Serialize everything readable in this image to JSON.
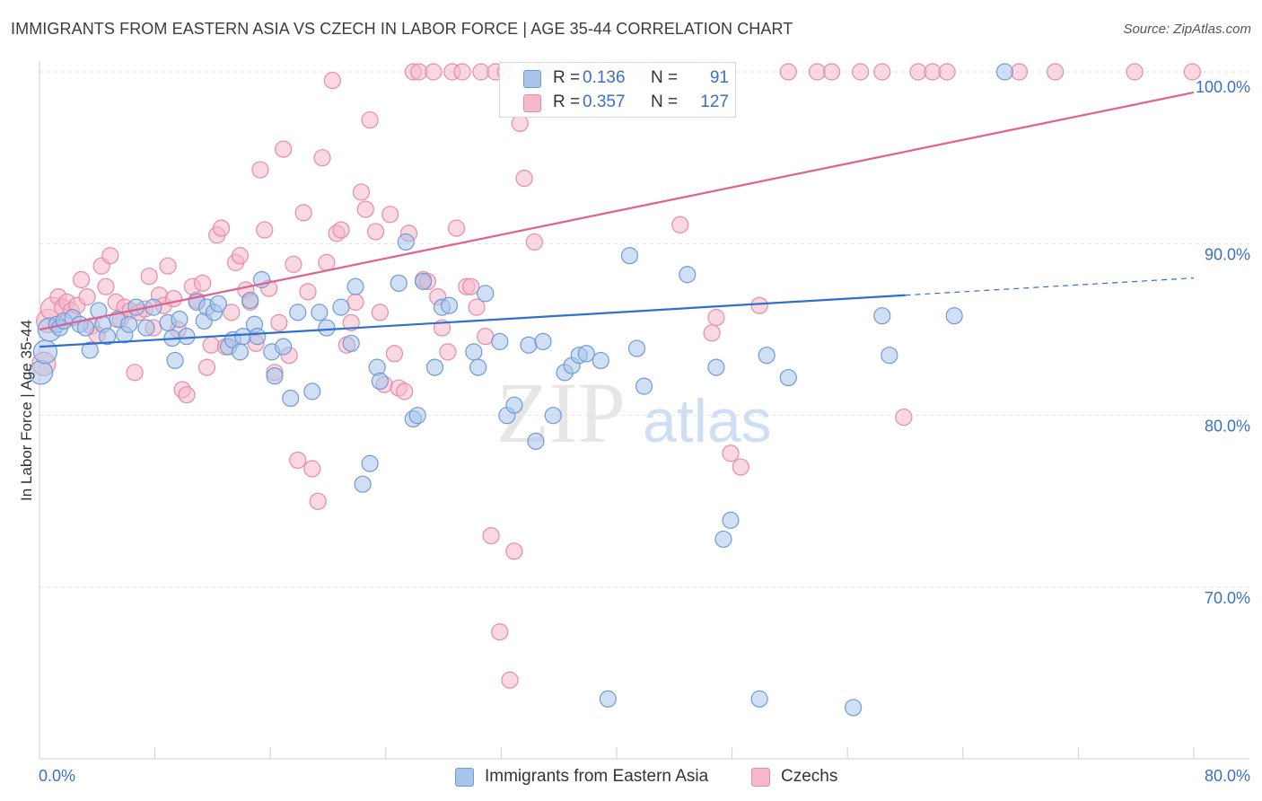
{
  "header": {
    "title": "IMMIGRANTS FROM EASTERN ASIA VS CZECH IN LABOR FORCE | AGE 35-44 CORRELATION CHART",
    "source": "Source: ZipAtlas.com"
  },
  "watermark": {
    "zip": "ZIP",
    "atlas": "atlas"
  },
  "legend": {
    "rows": [
      {
        "r_label": "R =",
        "r_value": "0.136",
        "n_label": "N =",
        "n_value": "91"
      },
      {
        "r_label": "R =",
        "r_value": "0.357",
        "n_label": "N =",
        "n_value": "127"
      }
    ]
  },
  "bottom_legend": {
    "items": [
      {
        "label": "Immigrants from Eastern Asia"
      },
      {
        "label": "Czechs"
      }
    ]
  },
  "colors": {
    "blue_fill": "#a9c4ea",
    "blue_stroke": "#6f9bd8",
    "blue_line": "#2f6fce",
    "pink_fill": "#f5b8cb",
    "pink_stroke": "#e88aa8",
    "pink_line": "#e0608e",
    "axis_label": "#3b6fc8",
    "grid": "#e2e2e2"
  },
  "chart_data": {
    "type": "scatter",
    "title": "IMMIGRANTS FROM EASTERN ASIA VS CZECH IN LABOR FORCE | AGE 35-44 CORRELATION CHART",
    "xlabel": "",
    "ylabel": "In Labor Force | Age 35-44",
    "xlim": [
      0,
      80
    ],
    "ylim": [
      60,
      100
    ],
    "x_tick_labels": [
      "0.0%",
      "80.0%"
    ],
    "y_ticks": [
      70,
      80,
      90,
      100
    ],
    "y_tick_labels": [
      "70.0%",
      "80.0%",
      "90.0%",
      "100.0%"
    ],
    "grid": true,
    "legend_position": "top-center",
    "series": [
      {
        "name": "Immigrants from Eastern Asia",
        "color": "blue",
        "trend": {
          "x0": 0,
          "y0": 84.0,
          "x1": 60,
          "y1": 87.0,
          "dashed_to": 80,
          "dashed_y": 88.0
        },
        "points": [
          [
            0.1,
            82.5
          ],
          [
            0.4,
            83.7
          ],
          [
            0.7,
            85.0
          ],
          [
            1.2,
            85.3
          ],
          [
            1.4,
            85.1
          ],
          [
            1.7,
            85.5
          ],
          [
            2.3,
            85.7
          ],
          [
            2.8,
            85.3
          ],
          [
            3.2,
            85.1
          ],
          [
            3.5,
            83.8
          ],
          [
            4.1,
            86.1
          ],
          [
            4.4,
            85.3
          ],
          [
            4.7,
            84.6
          ],
          [
            5.4,
            85.6
          ],
          [
            5.9,
            84.7
          ],
          [
            6.2,
            85.3
          ],
          [
            6.7,
            86.3
          ],
          [
            7.4,
            85.1
          ],
          [
            7.9,
            86.3
          ],
          [
            8.9,
            85.4
          ],
          [
            9.2,
            84.5
          ],
          [
            9.4,
            83.2
          ],
          [
            9.7,
            85.6
          ],
          [
            10.2,
            84.6
          ],
          [
            10.9,
            86.6
          ],
          [
            11.4,
            85.5
          ],
          [
            11.6,
            86.3
          ],
          [
            12.1,
            86.0
          ],
          [
            12.4,
            86.5
          ],
          [
            13.1,
            84.0
          ],
          [
            13.4,
            84.4
          ],
          [
            13.9,
            83.7
          ],
          [
            14.1,
            84.6
          ],
          [
            14.6,
            86.7
          ],
          [
            14.9,
            85.3
          ],
          [
            15.1,
            84.6
          ],
          [
            15.4,
            87.9
          ],
          [
            16.1,
            83.7
          ],
          [
            16.3,
            82.3
          ],
          [
            16.9,
            84.0
          ],
          [
            17.4,
            81.0
          ],
          [
            17.9,
            86.0
          ],
          [
            18.9,
            81.4
          ],
          [
            19.4,
            86.0
          ],
          [
            19.9,
            85.1
          ],
          [
            20.9,
            86.3
          ],
          [
            21.6,
            84.2
          ],
          [
            21.9,
            87.5
          ],
          [
            22.4,
            76.0
          ],
          [
            22.9,
            77.2
          ],
          [
            23.4,
            82.8
          ],
          [
            23.6,
            82.0
          ],
          [
            24.9,
            87.7
          ],
          [
            25.4,
            90.1
          ],
          [
            25.9,
            79.8
          ],
          [
            26.2,
            80.0
          ],
          [
            26.6,
            87.8
          ],
          [
            27.4,
            82.8
          ],
          [
            27.9,
            86.3
          ],
          [
            28.4,
            86.4
          ],
          [
            30.1,
            83.7
          ],
          [
            30.4,
            82.8
          ],
          [
            30.9,
            87.1
          ],
          [
            31.9,
            84.3
          ],
          [
            32.4,
            80.0
          ],
          [
            32.9,
            80.6
          ],
          [
            33.9,
            84.1
          ],
          [
            34.4,
            78.5
          ],
          [
            34.9,
            84.3
          ],
          [
            35.6,
            80.0
          ],
          [
            36.4,
            82.5
          ],
          [
            36.9,
            82.9
          ],
          [
            37.4,
            83.5
          ],
          [
            37.9,
            83.6
          ],
          [
            38.9,
            83.2
          ],
          [
            39.4,
            63.5
          ],
          [
            40.9,
            89.3
          ],
          [
            41.4,
            83.9
          ],
          [
            41.9,
            81.7
          ],
          [
            44.9,
            88.2
          ],
          [
            46.9,
            82.8
          ],
          [
            47.4,
            72.8
          ],
          [
            47.9,
            73.9
          ],
          [
            49.9,
            63.5
          ],
          [
            50.4,
            83.5
          ],
          [
            51.9,
            82.2
          ],
          [
            56.4,
            63.0
          ],
          [
            58.4,
            85.8
          ],
          [
            58.9,
            83.5
          ],
          [
            63.4,
            85.8
          ],
          [
            66.9,
            100.0
          ]
        ]
      },
      {
        "name": "Czechs",
        "color": "pink",
        "trend": {
          "x0": 0,
          "y0": 85.0,
          "x1": 80,
          "y1": 98.8
        },
        "points": [
          [
            0.3,
            83.0
          ],
          [
            0.6,
            85.5
          ],
          [
            0.9,
            86.2
          ],
          [
            1.3,
            86.9
          ],
          [
            1.6,
            86.3
          ],
          [
            1.9,
            86.6
          ],
          [
            2.2,
            86.1
          ],
          [
            2.6,
            86.4
          ],
          [
            2.9,
            87.9
          ],
          [
            3.3,
            86.9
          ],
          [
            3.6,
            85.2
          ],
          [
            4.0,
            84.7
          ],
          [
            4.3,
            88.7
          ],
          [
            4.6,
            87.5
          ],
          [
            4.9,
            89.3
          ],
          [
            5.3,
            86.6
          ],
          [
            5.6,
            85.6
          ],
          [
            5.9,
            86.3
          ],
          [
            6.3,
            86.1
          ],
          [
            6.6,
            82.5
          ],
          [
            6.9,
            86.0
          ],
          [
            7.3,
            86.2
          ],
          [
            7.6,
            88.1
          ],
          [
            7.9,
            85.1
          ],
          [
            8.3,
            87.0
          ],
          [
            8.6,
            86.4
          ],
          [
            8.9,
            88.7
          ],
          [
            9.3,
            86.8
          ],
          [
            9.6,
            85.0
          ],
          [
            9.9,
            81.5
          ],
          [
            10.2,
            81.2
          ],
          [
            10.6,
            87.5
          ],
          [
            10.9,
            86.7
          ],
          [
            11.3,
            87.7
          ],
          [
            11.6,
            82.8
          ],
          [
            11.9,
            84.1
          ],
          [
            12.3,
            90.5
          ],
          [
            12.6,
            90.9
          ],
          [
            12.9,
            84.0
          ],
          [
            13.3,
            86.0
          ],
          [
            13.6,
            88.9
          ],
          [
            13.9,
            89.3
          ],
          [
            14.3,
            87.3
          ],
          [
            14.6,
            86.6
          ],
          [
            15.0,
            84.2
          ],
          [
            15.3,
            94.3
          ],
          [
            15.6,
            90.8
          ],
          [
            15.9,
            87.4
          ],
          [
            16.3,
            82.5
          ],
          [
            16.6,
            85.4
          ],
          [
            16.9,
            95.5
          ],
          [
            17.3,
            83.5
          ],
          [
            17.6,
            88.8
          ],
          [
            17.9,
            77.4
          ],
          [
            18.3,
            91.8
          ],
          [
            18.6,
            87.2
          ],
          [
            18.9,
            76.9
          ],
          [
            19.3,
            75.0
          ],
          [
            19.6,
            95.0
          ],
          [
            19.9,
            88.9
          ],
          [
            20.3,
            99.5
          ],
          [
            20.6,
            90.6
          ],
          [
            20.9,
            90.8
          ],
          [
            21.3,
            84.1
          ],
          [
            21.6,
            85.4
          ],
          [
            21.9,
            86.6
          ],
          [
            22.3,
            93.0
          ],
          [
            22.6,
            92.0
          ],
          [
            22.9,
            97.2
          ],
          [
            23.3,
            90.7
          ],
          [
            23.6,
            86.0
          ],
          [
            23.9,
            81.8
          ],
          [
            24.3,
            91.7
          ],
          [
            24.6,
            83.6
          ],
          [
            24.9,
            81.6
          ],
          [
            25.3,
            81.4
          ],
          [
            25.6,
            90.6
          ],
          [
            25.9,
            100.0
          ],
          [
            26.3,
            100.0
          ],
          [
            26.6,
            87.9
          ],
          [
            26.9,
            87.8
          ],
          [
            27.3,
            100.0
          ],
          [
            27.6,
            86.9
          ],
          [
            27.9,
            85.1
          ],
          [
            28.3,
            83.7
          ],
          [
            28.6,
            100.0
          ],
          [
            28.9,
            90.9
          ],
          [
            29.3,
            100.0
          ],
          [
            29.6,
            87.5
          ],
          [
            29.9,
            87.5
          ],
          [
            30.3,
            86.3
          ],
          [
            30.6,
            100.0
          ],
          [
            30.9,
            84.6
          ],
          [
            31.3,
            73.0
          ],
          [
            31.6,
            100.0
          ],
          [
            31.9,
            67.4
          ],
          [
            32.3,
            100.0
          ],
          [
            32.6,
            64.6
          ],
          [
            32.9,
            72.1
          ],
          [
            33.3,
            97.0
          ],
          [
            33.6,
            93.8
          ],
          [
            33.9,
            100.0
          ],
          [
            34.3,
            90.1
          ],
          [
            34.6,
            100.0
          ],
          [
            35.9,
            100.0
          ],
          [
            37.9,
            100.0
          ],
          [
            39.9,
            100.0
          ],
          [
            41.9,
            100.0
          ],
          [
            44.4,
            91.1
          ],
          [
            46.6,
            84.8
          ],
          [
            46.9,
            85.7
          ],
          [
            47.9,
            77.8
          ],
          [
            48.6,
            77.0
          ],
          [
            49.9,
            86.4
          ],
          [
            51.9,
            100.0
          ],
          [
            53.9,
            100.0
          ],
          [
            54.9,
            100.0
          ],
          [
            56.9,
            100.0
          ],
          [
            58.4,
            100.0
          ],
          [
            59.9,
            79.9
          ],
          [
            60.9,
            100.0
          ],
          [
            61.9,
            100.0
          ],
          [
            62.9,
            100.0
          ],
          [
            67.9,
            100.0
          ],
          [
            70.4,
            100.0
          ],
          [
            75.9,
            100.0
          ],
          [
            79.9,
            100.0
          ]
        ]
      }
    ]
  }
}
